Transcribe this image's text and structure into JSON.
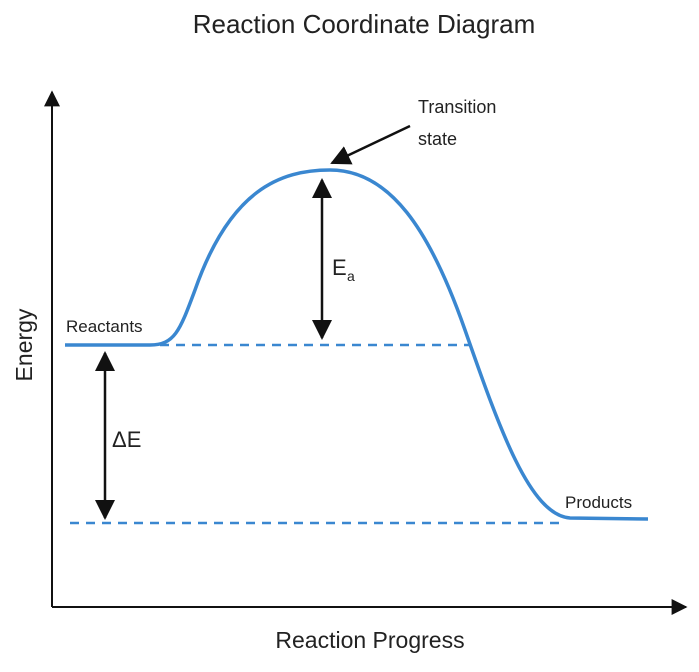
{
  "title": "Reaction Coordinate Diagram",
  "axes": {
    "x_label": "Reaction Progress",
    "y_label": "Energy"
  },
  "labels": {
    "reactants": "Reactants",
    "products": "Products",
    "transition_state": [
      "Transition",
      "state"
    ],
    "activation_energy": {
      "main": "E",
      "sub": "a"
    },
    "delta_e": "ΔE"
  }
}
